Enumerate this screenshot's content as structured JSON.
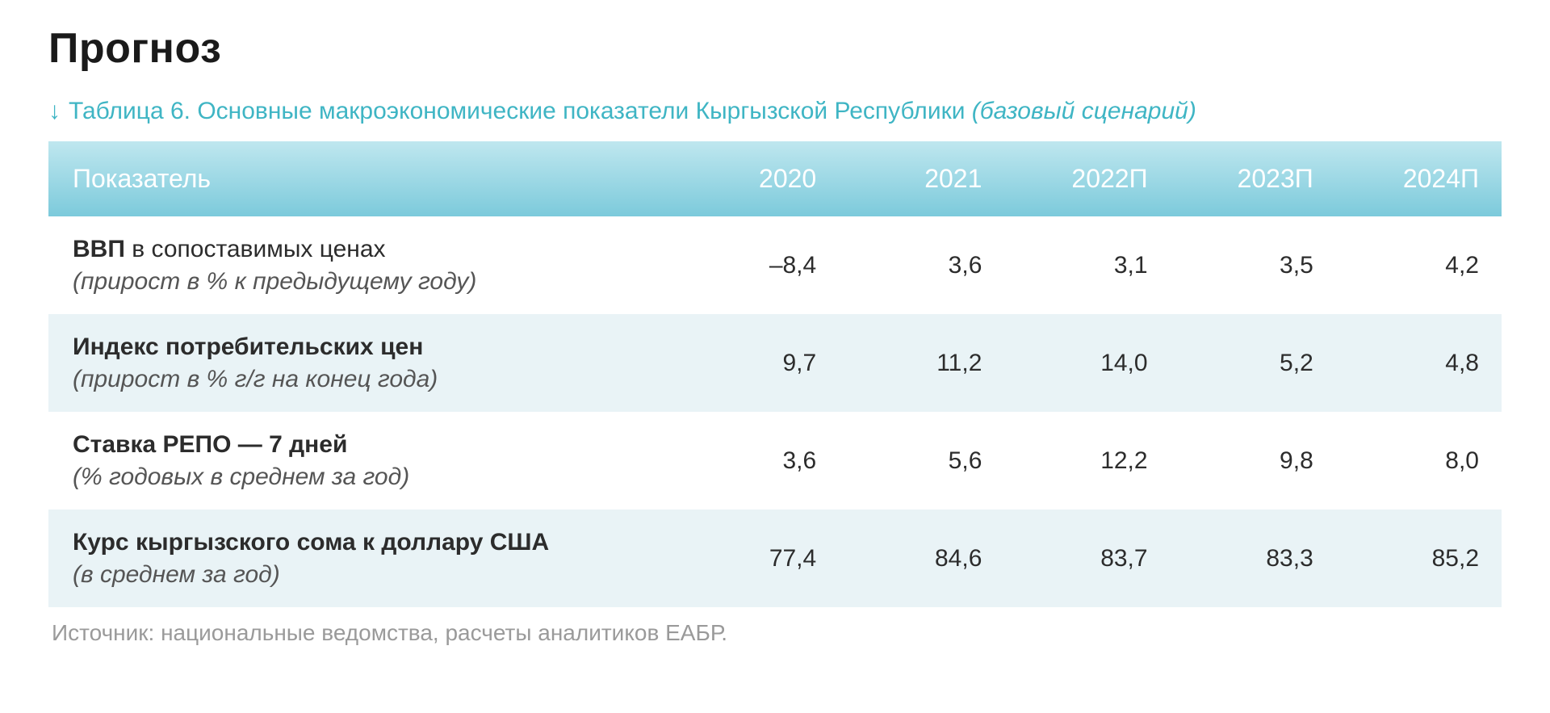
{
  "page": {
    "title": "Прогноз",
    "subtitle_prefix": "Таблица 6. Основные макроэкономические показатели Кыргызской Республики ",
    "subtitle_scenario": "(базовый сценарий)",
    "arrow_glyph": "↓",
    "source_label": "Источник: ",
    "source_text": "национальные ведомства, расчеты аналитиков ЕАБР."
  },
  "table": {
    "type": "table",
    "header_gradient_top": "#bfe7ef",
    "header_gradient_bottom": "#7ccadb",
    "header_text_color": "#ffffff",
    "row_bg_odd": "#ffffff",
    "row_bg_even": "#e9f3f6",
    "text_color": "#2c2c2c",
    "accent_color": "#3fb5c4",
    "font_size_header": 32,
    "font_size_cell": 30,
    "columns": [
      {
        "key": "indicator",
        "label": "Показатель",
        "align": "left",
        "width_pct": 43
      },
      {
        "key": "y2020",
        "label": "2020",
        "align": "right",
        "width_pct": 11.4
      },
      {
        "key": "y2021",
        "label": "2021",
        "align": "right",
        "width_pct": 11.4
      },
      {
        "key": "y2022p",
        "label": "2022П",
        "align": "right",
        "width_pct": 11.4
      },
      {
        "key": "y2023p",
        "label": "2023П",
        "align": "right",
        "width_pct": 11.4
      },
      {
        "key": "y2024p",
        "label": "2024П",
        "align": "right",
        "width_pct": 11.4
      }
    ],
    "rows": [
      {
        "label_bold": "ВВП",
        "label_plain": " в сопоставимых ценах",
        "label_note": "(прирост в % к предыдущему году)",
        "values": [
          "–8,4",
          "3,6",
          "3,1",
          "3,5",
          "4,2"
        ]
      },
      {
        "label_bold": "Индекс потребительских цен",
        "label_plain": "",
        "label_note": "(прирост в % г/г на конец года)",
        "values": [
          "9,7",
          "11,2",
          "14,0",
          "5,2",
          "4,8"
        ]
      },
      {
        "label_bold": "Ставка РЕПО — 7 дней",
        "label_plain": "",
        "label_note": "(% годовых в среднем за год)",
        "values": [
          "3,6",
          "5,6",
          "12,2",
          "9,8",
          "8,0"
        ]
      },
      {
        "label_bold": "Курс кыргызского сома к доллару США",
        "label_plain": "",
        "label_note": "(в среднем за год)",
        "values": [
          "77,4",
          "84,6",
          "83,7",
          "83,3",
          "85,2"
        ]
      }
    ]
  }
}
